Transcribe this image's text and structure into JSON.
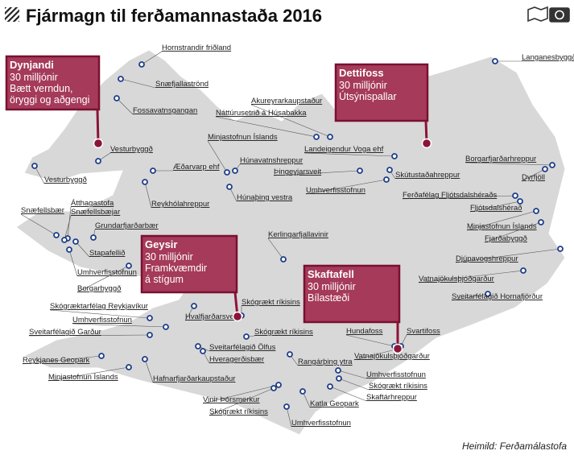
{
  "header": {
    "title": "Fjármagn til ferðamannastaða 2016"
  },
  "callouts": [
    {
      "name": "Dynjandi",
      "lines": [
        "30 milljónir",
        "Bætt verndun,",
        "öryggi og aðgengi"
      ]
    },
    {
      "name": "Dettifoss",
      "lines": [
        "30 milljónir",
        "Útsýnispallar"
      ]
    },
    {
      "name": "Geysir",
      "lines": [
        "30 milljónir",
        "Framkvæmdir",
        "á stígum"
      ]
    },
    {
      "name": "Skaftafell",
      "lines": [
        "30 milljónir",
        "Bílastæði"
      ]
    }
  ],
  "places": [
    "Hornstrandir friðland",
    "Snæfjallaströnd",
    "Fossavatnsgangan",
    "Vesturbyggð",
    "Vesturbyggð",
    "Æðarvarp ehf",
    "Minjastofnun Íslands",
    "Reykhólahreppur",
    "Húnavatnshreppur",
    "Húnaþing vestra",
    "Akureyrarkaupstaður",
    "Náttúrusetrið á Húsabakka",
    "Landeigendur Voga ehf",
    "Þingeyjarsveit",
    "Umhverfisstofnun",
    "Skútustaðahreppur",
    "Langanesbyggð",
    "Borgarfjarðarhreppur",
    "Dyrfjöll",
    "Ferðafélag Fljótsdalshéraðs",
    "Fljótsdalshérað",
    "Minjastofnun Íslands",
    "Fjarðabyggð",
    "Djúpavogshreppur",
    "Vatnajökulsþjóðgarður",
    "Sveitarfélagið Hornafjörður",
    "Kerlingarfjallavinir",
    "Snæfellsbær",
    "Átthagastofa",
    "Snæfellsbæjar",
    "Grundarfjarðarbær",
    "Stapafellið",
    "Umhverfisstofnun",
    "Borgarbyggð",
    "Skógræktarfélag Reykjavíkur",
    "Umhverfisstofnun",
    "Sveitarfélagið Garður",
    "Hvalfjarðarsveit",
    "Skógrækt ríkisins",
    "Skógrækt ríkisins",
    "Sveitarfélagið Ölfus",
    "Hveragerðisbær",
    "Reykjanes Geopark",
    "Minjastofnun Íslands",
    "Hafnarfjarðarkaupstaður",
    "Rangárþing ytra",
    "Hundafoss",
    "Svartifoss",
    "Vatnajökulsþjóðgarður",
    "Umhverfisstofnun",
    "Skógrækt ríkisins",
    "Skaftárhreppur",
    "Katla Geopark",
    "Vinir Þórsmerkur",
    "Skógrækt ríkisins",
    "Umhverfisstofnun"
  ],
  "source": "Heimild: Ferðamálastofa"
}
